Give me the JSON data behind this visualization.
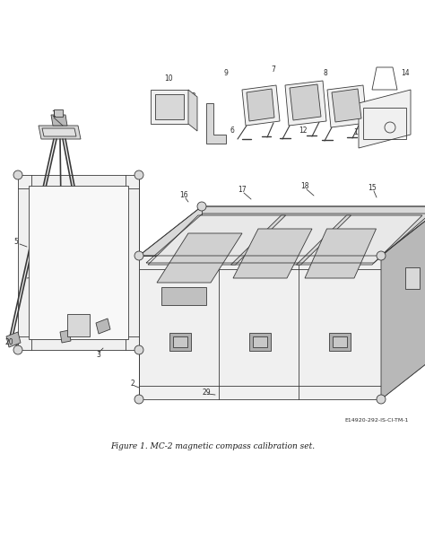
{
  "title": "Figure 1. MC-2 magnetic compass calibration set.",
  "ref_code": "E14920-292-IS-CI-TM-1",
  "background_color": "#ffffff",
  "fig_width": 4.74,
  "fig_height": 6.13,
  "dpi": 100,
  "line_color": "#3a3a3a",
  "line_width": 0.6,
  "fill_light": "#f0f0f0",
  "fill_mid": "#d8d8d8",
  "fill_dark": "#b8b8b8"
}
